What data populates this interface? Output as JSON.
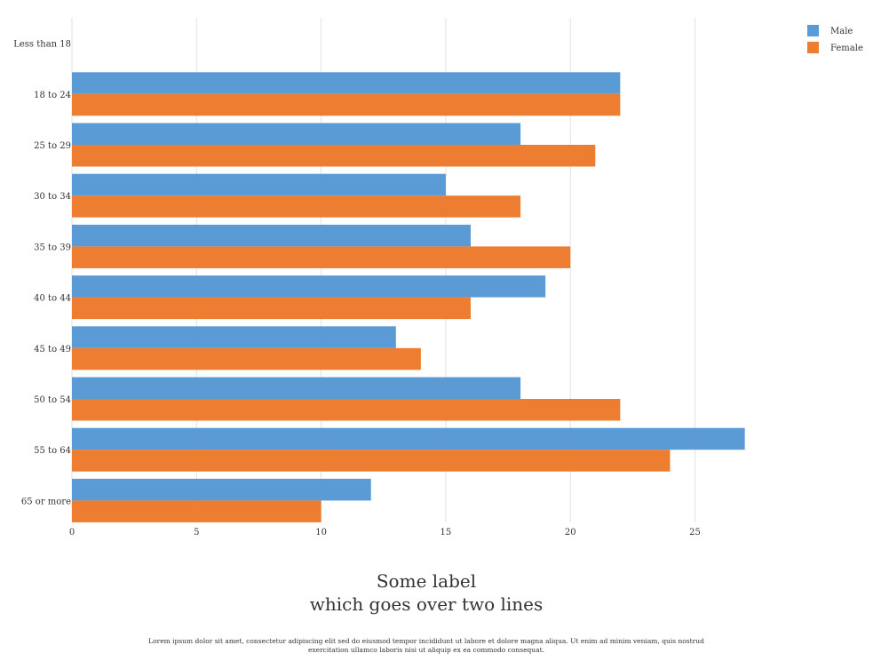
{
  "chart_data": {
    "type": "bar",
    "orientation": "horizontal",
    "title_lines": [
      "Some label",
      "which goes over two lines"
    ],
    "categories": [
      "Less than 18",
      "18 to 24",
      "25 to 29",
      "30 to 34",
      "35 to 39",
      "40 to 44",
      "45 to 49",
      "50 to 54",
      "55 to 64",
      "65 or more"
    ],
    "series": [
      {
        "name": "Male",
        "color": "#5b9bd5",
        "values": [
          0,
          22,
          18,
          15,
          16,
          19,
          13,
          18,
          27,
          12
        ]
      },
      {
        "name": "Female",
        "color": "#ed7d31",
        "values": [
          0,
          22,
          21,
          18,
          20,
          16,
          14,
          22,
          24,
          10
        ]
      }
    ],
    "x_ticks": [
      0,
      5,
      10,
      15,
      20,
      25
    ],
    "xlim": [
      0,
      32.5
    ],
    "grid": true,
    "legend_position": "top-right"
  },
  "caption": "Lorem ipsum dolor sit amet, consectetur adipiscing elit sed do eiusmod tempor incididunt ut labore et dolore magna aliqua. Ut enim ad minim veniam, quis nostrud exercitation ullamco laboris nisi ut aliquip ex ea commodo consequat."
}
